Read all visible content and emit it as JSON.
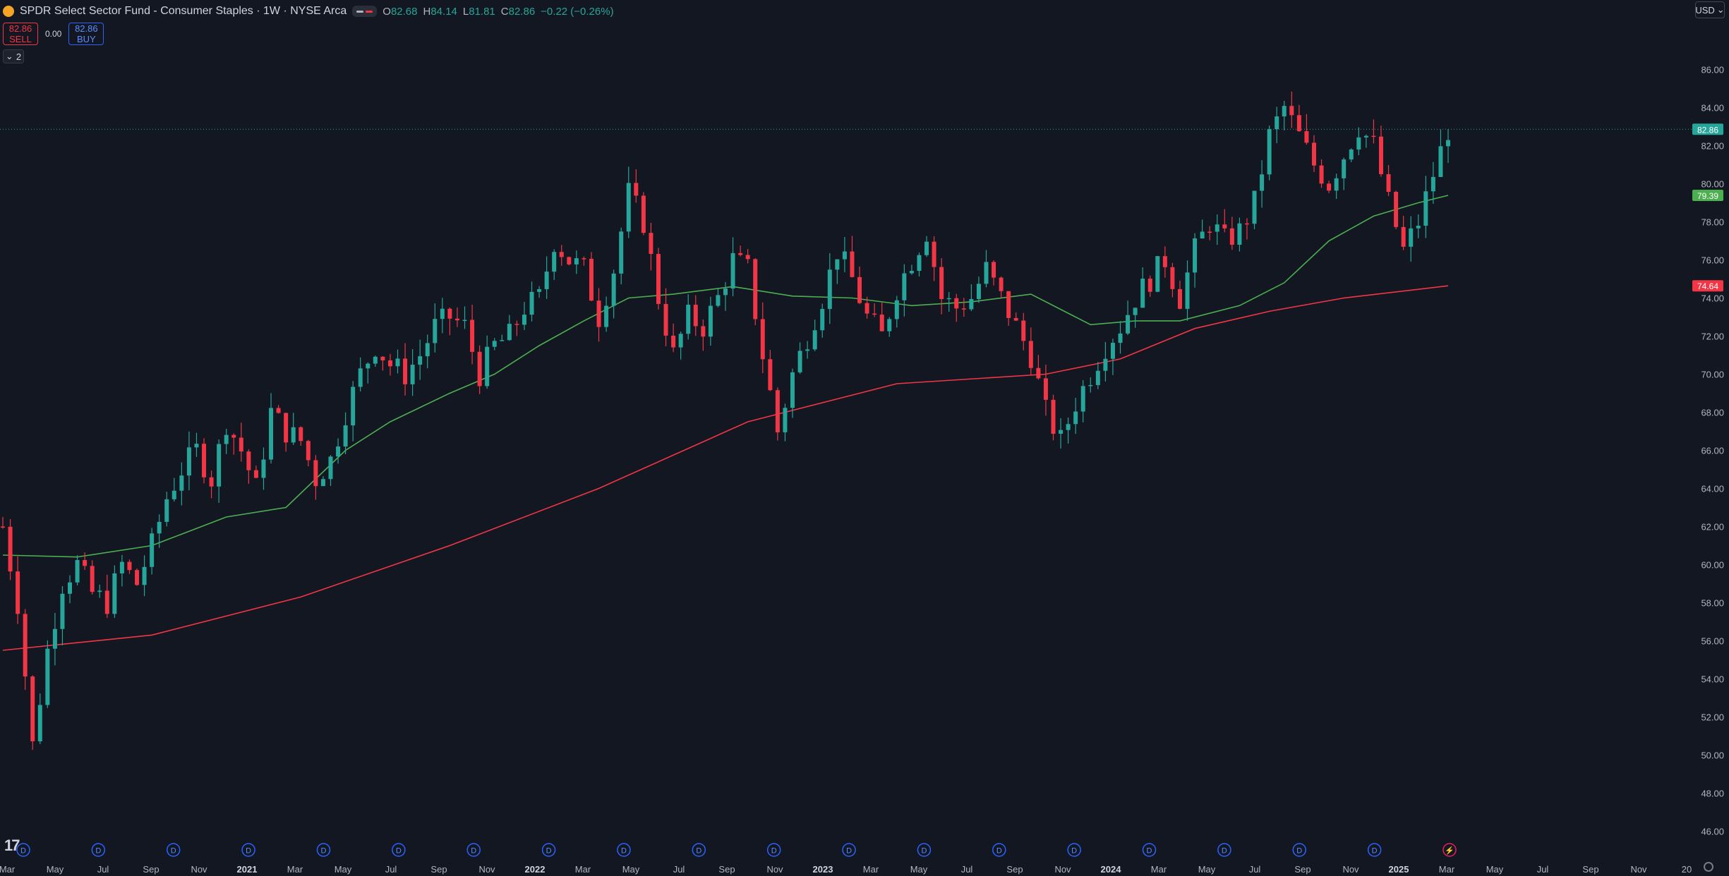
{
  "legend": {
    "symbol_initial": "",
    "title": "SPDR Select Sector Fund - Consumer Staples · 1W · NYSE Arca",
    "ohlc": [
      {
        "key": "O",
        "value": "82.68"
      },
      {
        "key": "H",
        "value": "84.14"
      },
      {
        "key": "L",
        "value": "81.81"
      },
      {
        "key": "C",
        "value": "82.86"
      }
    ],
    "change": "−0.22 (−0.26%)"
  },
  "trade": {
    "sell_price": "82.86",
    "sell_label": "SELL",
    "spread": "0.00",
    "buy_price": "82.86",
    "buy_label": "BUY"
  },
  "indicators_toggle": {
    "count": "2"
  },
  "currency": {
    "label": "USD"
  },
  "colors": {
    "background": "#131722",
    "up": "#26a69a",
    "down": "#f23645",
    "ma_short": "#4caf50",
    "ma_long": "#f23645",
    "grid_text": "#b2b5be"
  },
  "chart_data": {
    "type": "candlestick",
    "interval": "1W",
    "ylim": [
      45.5,
      87.5
    ],
    "y_ticks": [
      "86.00",
      "84.00",
      "82.00",
      "80.00",
      "78.00",
      "76.00",
      "74.00",
      "72.00",
      "70.00",
      "68.00",
      "66.00",
      "64.00",
      "62.00",
      "60.00",
      "58.00",
      "56.00",
      "54.00",
      "52.00",
      "50.00",
      "48.00",
      "46.00"
    ],
    "x_labels": [
      "Mar",
      "May",
      "Jul",
      "Sep",
      "Nov",
      "2021",
      "Mar",
      "May",
      "Jul",
      "Sep",
      "Nov",
      "2022",
      "Mar",
      "May",
      "Jul",
      "Sep",
      "Nov",
      "2023",
      "Mar",
      "May",
      "Jul",
      "Sep",
      "Nov",
      "2024",
      "Mar",
      "May",
      "Jul",
      "Sep",
      "Nov",
      "2025",
      "Mar",
      "May",
      "Jul",
      "Sep",
      "Nov",
      "20"
    ],
    "price_labels": [
      {
        "value": 82.86,
        "text": "82.86",
        "color": "#26a69a"
      },
      {
        "value": 79.39,
        "text": "79.39",
        "color": "#4caf50"
      },
      {
        "value": 74.64,
        "text": "74.64",
        "color": "#f23645"
      }
    ],
    "price_line": 82.86,
    "event_markers": {
      "count": 20,
      "label": "D"
    },
    "close_path": [
      [
        0,
        62.0
      ],
      [
        2,
        58.0
      ],
      [
        4,
        50.5
      ],
      [
        6,
        55.5
      ],
      [
        8,
        59.0
      ],
      [
        10,
        60.0
      ],
      [
        12,
        58.5
      ],
      [
        14,
        58.0
      ],
      [
        16,
        60.0
      ],
      [
        18,
        59.0
      ],
      [
        20,
        61.0
      ],
      [
        22,
        63.5
      ],
      [
        24,
        65.0
      ],
      [
        26,
        66.0
      ],
      [
        28,
        64.5
      ],
      [
        30,
        67.5
      ],
      [
        32,
        66.0
      ],
      [
        34,
        64.0
      ],
      [
        36,
        68.0
      ],
      [
        38,
        67.0
      ],
      [
        40,
        66.5
      ],
      [
        42,
        64.5
      ],
      [
        44,
        65.5
      ],
      [
        46,
        68.0
      ],
      [
        48,
        70.0
      ],
      [
        50,
        71.5
      ],
      [
        52,
        70.5
      ],
      [
        54,
        70.0
      ],
      [
        56,
        71.0
      ],
      [
        58,
        72.5
      ],
      [
        60,
        73.0
      ],
      [
        62,
        72.5
      ],
      [
        64,
        70.0
      ],
      [
        66,
        71.5
      ],
      [
        68,
        72.0
      ],
      [
        70,
        73.5
      ],
      [
        72,
        74.0
      ],
      [
        74,
        77.0
      ],
      [
        76,
        76.0
      ],
      [
        78,
        75.5
      ],
      [
        80,
        73.0
      ],
      [
        82,
        75.5
      ],
      [
        84,
        79.5
      ],
      [
        86,
        78.0
      ],
      [
        88,
        74.0
      ],
      [
        90,
        71.0
      ],
      [
        92,
        73.0
      ],
      [
        94,
        72.5
      ],
      [
        96,
        74.0
      ],
      [
        98,
        76.0
      ],
      [
        100,
        75.5
      ],
      [
        102,
        71.0
      ],
      [
        104,
        67.0
      ],
      [
        106,
        70.0
      ],
      [
        108,
        72.0
      ],
      [
        110,
        74.0
      ],
      [
        112,
        76.5
      ],
      [
        114,
        75.0
      ],
      [
        116,
        73.0
      ],
      [
        118,
        72.0
      ],
      [
        120,
        74.5
      ],
      [
        122,
        76.0
      ],
      [
        124,
        77.5
      ],
      [
        126,
        74.0
      ],
      [
        128,
        73.5
      ],
      [
        130,
        74.0
      ],
      [
        132,
        75.5
      ],
      [
        134,
        74.0
      ],
      [
        136,
        72.5
      ],
      [
        138,
        71.0
      ],
      [
        140,
        68.0
      ],
      [
        142,
        66.5
      ],
      [
        144,
        68.5
      ],
      [
        146,
        70.0
      ],
      [
        148,
        71.5
      ],
      [
        150,
        72.5
      ],
      [
        152,
        74.0
      ],
      [
        154,
        75.0
      ],
      [
        156,
        76.0
      ],
      [
        158,
        74.0
      ],
      [
        160,
        76.5
      ],
      [
        162,
        78.0
      ],
      [
        164,
        77.0
      ],
      [
        166,
        77.5
      ],
      [
        168,
        79.0
      ],
      [
        170,
        82.5
      ],
      [
        172,
        84.0
      ],
      [
        174,
        82.5
      ],
      [
        176,
        81.0
      ],
      [
        178,
        80.0
      ],
      [
        180,
        81.5
      ],
      [
        182,
        83.0
      ],
      [
        184,
        82.0
      ],
      [
        186,
        79.0
      ],
      [
        188,
        76.5
      ],
      [
        190,
        78.0
      ],
      [
        192,
        80.5
      ],
      [
        194,
        82.86
      ]
    ],
    "ma_short_path": [
      [
        0,
        60.5
      ],
      [
        10,
        60.4
      ],
      [
        20,
        61.0
      ],
      [
        30,
        62.5
      ],
      [
        38,
        63.0
      ],
      [
        46,
        66.0
      ],
      [
        52,
        67.5
      ],
      [
        60,
        69.0
      ],
      [
        66,
        70.0
      ],
      [
        72,
        71.5
      ],
      [
        78,
        72.8
      ],
      [
        84,
        74.0
      ],
      [
        90,
        74.2
      ],
      [
        98,
        74.6
      ],
      [
        106,
        74.1
      ],
      [
        114,
        74.0
      ],
      [
        122,
        73.6
      ],
      [
        130,
        73.8
      ],
      [
        138,
        74.2
      ],
      [
        146,
        72.6
      ],
      [
        152,
        72.8
      ],
      [
        158,
        72.8
      ],
      [
        166,
        73.6
      ],
      [
        172,
        74.8
      ],
      [
        178,
        77.0
      ],
      [
        184,
        78.3
      ],
      [
        190,
        79.0
      ],
      [
        194,
        79.39
      ]
    ],
    "ma_long_path": [
      [
        0,
        55.5
      ],
      [
        20,
        56.3
      ],
      [
        40,
        58.3
      ],
      [
        60,
        61.0
      ],
      [
        80,
        64.0
      ],
      [
        100,
        67.5
      ],
      [
        120,
        69.5
      ],
      [
        140,
        70.0
      ],
      [
        150,
        70.8
      ],
      [
        160,
        72.4
      ],
      [
        170,
        73.3
      ],
      [
        180,
        74.0
      ],
      [
        194,
        74.64
      ]
    ]
  }
}
